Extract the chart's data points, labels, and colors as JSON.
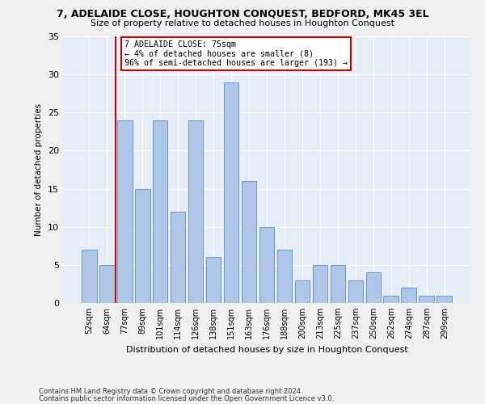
{
  "title": "7, ADELAIDE CLOSE, HOUGHTON CONQUEST, BEDFORD, MK45 3EL",
  "subtitle": "Size of property relative to detached houses in Houghton Conquest",
  "xlabel": "Distribution of detached houses by size in Houghton Conquest",
  "ylabel": "Number of detached properties",
  "bar_labels": [
    "52sqm",
    "64sqm",
    "77sqm",
    "89sqm",
    "101sqm",
    "114sqm",
    "126sqm",
    "138sqm",
    "151sqm",
    "163sqm",
    "176sqm",
    "188sqm",
    "200sqm",
    "213sqm",
    "225sqm",
    "237sqm",
    "250sqm",
    "262sqm",
    "274sqm",
    "287sqm",
    "299sqm"
  ],
  "bar_values": [
    7,
    5,
    24,
    15,
    24,
    12,
    24,
    6,
    29,
    16,
    10,
    7,
    3,
    5,
    5,
    3,
    4,
    1,
    2,
    1,
    1
  ],
  "bar_color": "#aec6e8",
  "bar_edge_color": "#5b8cc8",
  "background_color": "#e8eef7",
  "grid_color": "#ffffff",
  "fig_background": "#f0f0f0",
  "vline_index": 2,
  "vline_color": "#cc0000",
  "annotation_line1": "7 ADELAIDE CLOSE: 75sqm",
  "annotation_line2": "← 4% of detached houses are smaller (8)",
  "annotation_line3": "96% of semi-detached houses are larger (193) →",
  "annotation_box_color": "#cc0000",
  "ylim": [
    0,
    35
  ],
  "yticks": [
    0,
    5,
    10,
    15,
    20,
    25,
    30,
    35
  ],
  "footnote1": "Contains HM Land Registry data © Crown copyright and database right 2024.",
  "footnote2": "Contains public sector information licensed under the Open Government Licence v3.0."
}
